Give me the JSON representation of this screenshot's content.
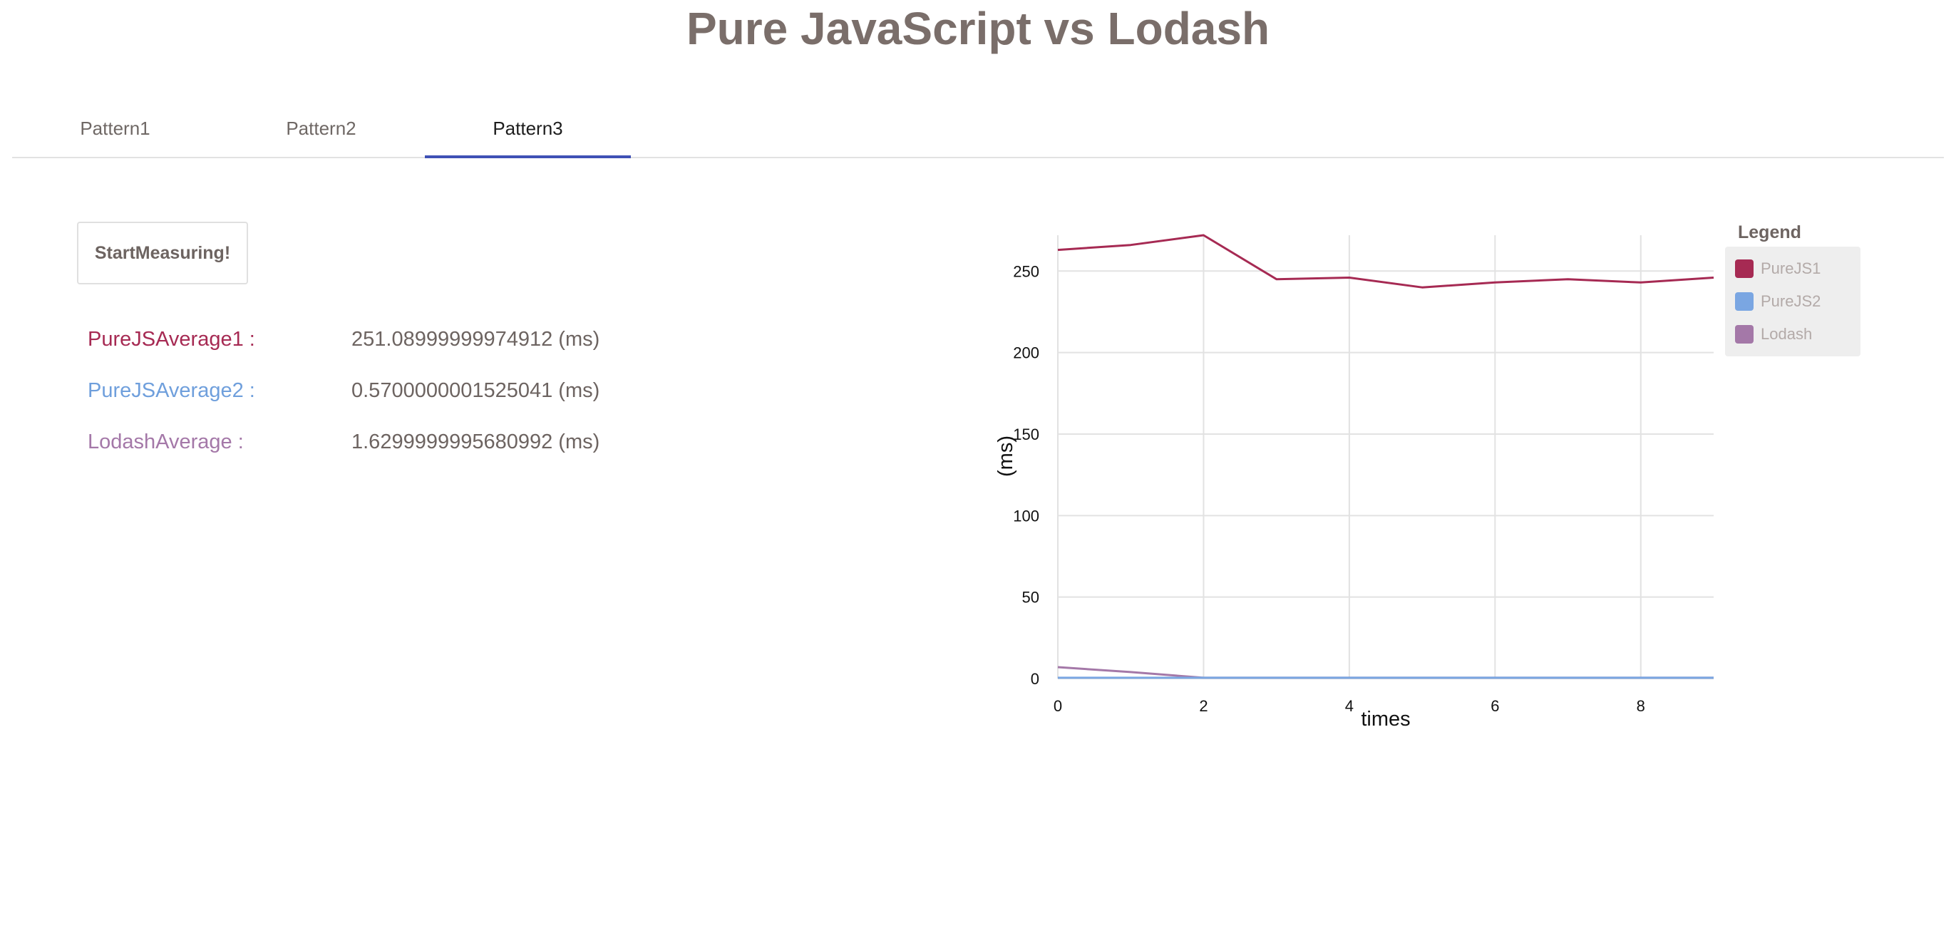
{
  "header": {
    "title": "Pure JavaScript vs Lodash"
  },
  "tabs": [
    {
      "label": "Pattern1",
      "active": false
    },
    {
      "label": "Pattern2",
      "active": false
    },
    {
      "label": "Pattern3",
      "active": true
    }
  ],
  "controls": {
    "start_label": "StartMeasuring!"
  },
  "results": [
    {
      "label": "PureJSAverage1 :",
      "value": "251.08999999974912 (ms)",
      "color": "#a62a53"
    },
    {
      "label": "PureJSAverage2 :",
      "value": "0.5700000001525041 (ms)",
      "color": "#6f9fdc"
    },
    {
      "label": "LodashAverage :",
      "value": "1.6299999995680992 (ms)",
      "color": "#a478a8"
    }
  ],
  "legend": {
    "title": "Legend",
    "items": [
      {
        "label": "PureJS1",
        "color": "#a62a53"
      },
      {
        "label": "PureJS2",
        "color": "#7aa6e2"
      },
      {
        "label": "Lodash",
        "color": "#a478a8"
      }
    ]
  },
  "chart_data": {
    "type": "line",
    "xlabel": "times",
    "ylabel": "(ms)",
    "xlim": [
      0,
      9
    ],
    "ylim": [
      0,
      272
    ],
    "x_ticks": [
      0,
      2,
      4,
      6,
      8
    ],
    "y_ticks": [
      0,
      50,
      100,
      150,
      200,
      250
    ],
    "grid": true,
    "legend_position": "right",
    "x": [
      0,
      1,
      2,
      3,
      4,
      5,
      6,
      7,
      8,
      9
    ],
    "series": [
      {
        "name": "PureJS1",
        "color": "#a62a53",
        "values": [
          263,
          266,
          272,
          245,
          246,
          240,
          243,
          245,
          243,
          246
        ]
      },
      {
        "name": "PureJS2",
        "color": "#7aa6e2",
        "values": [
          0.5,
          0.5,
          0.5,
          0.5,
          0.5,
          0.5,
          0.5,
          0.5,
          0.5,
          0.5
        ]
      },
      {
        "name": "Lodash",
        "color": "#a478a8",
        "values": [
          7,
          4,
          0.5,
          0.5,
          0.5,
          0.5,
          0.5,
          0.5,
          0.5,
          0.5
        ]
      }
    ]
  }
}
